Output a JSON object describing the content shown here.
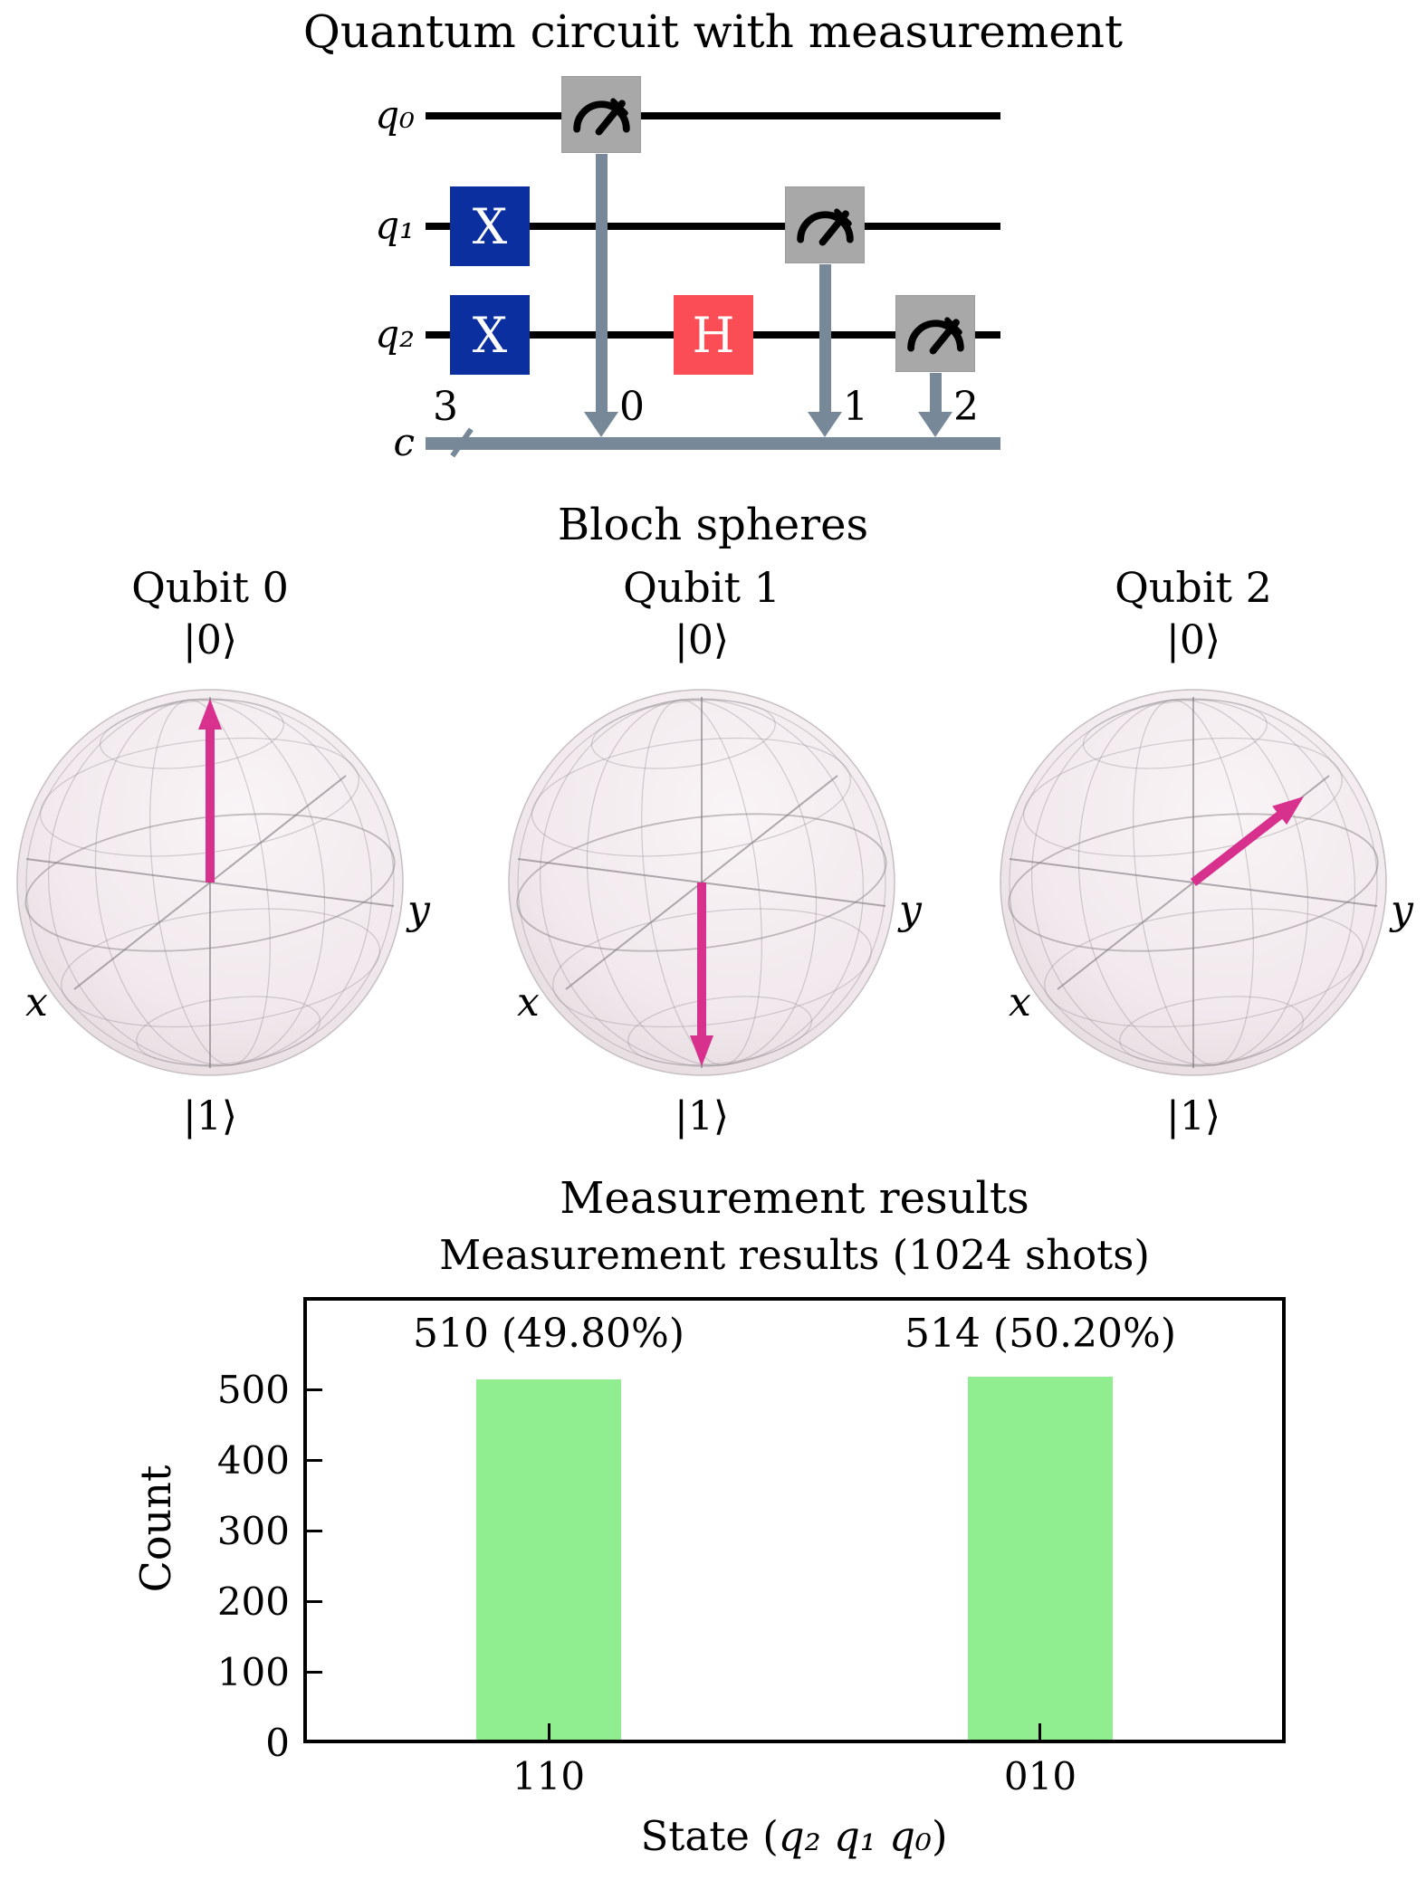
{
  "circuit": {
    "title": "Quantum circuit with measurement",
    "qubit_labels": [
      "q₀",
      "q₁",
      "q₂"
    ],
    "clbit_label": "c",
    "clbit_count": "3",
    "x_gate_label": "X",
    "h_gate_label": "H",
    "measure_targets": [
      "0",
      "1",
      "2"
    ],
    "colors": {
      "x_gate": "#0c2fa0",
      "h_gate": "#fa4d56",
      "measure_box": "#a8a8a8",
      "classical_wire": "#778899"
    }
  },
  "bloch": {
    "title": "Bloch spheres",
    "arrow_color": "#d7308d",
    "qubits": [
      {
        "label": "Qubit 0",
        "top_ket": "|0⟩",
        "bottom_ket": "|1⟩",
        "x_axis_label": "x",
        "y_axis_label": "y",
        "vector": [
          0,
          0,
          1
        ]
      },
      {
        "label": "Qubit 1",
        "top_ket": "|0⟩",
        "bottom_ket": "|1⟩",
        "x_axis_label": "x",
        "y_axis_label": "y",
        "vector": [
          0,
          0,
          -1
        ]
      },
      {
        "label": "Qubit 2",
        "top_ket": "|0⟩",
        "bottom_ket": "|1⟩",
        "x_axis_label": "x",
        "y_axis_label": "y",
        "vector": [
          -1,
          0,
          0
        ]
      }
    ]
  },
  "results_suptitle": "Measurement results",
  "chart_data": {
    "type": "bar",
    "title": "Measurement results (1024 shots)",
    "categories": [
      "110",
      "010"
    ],
    "values": [
      510,
      514
    ],
    "bar_labels": [
      "510 (49.80%)",
      "514 (50.20%)"
    ],
    "total_shots": 1024,
    "ylabel": "Count",
    "xlabel": "State (q₂ q₁ q₀)",
    "xlabel_prefix": "State (",
    "xlabel_math": "q₂ q₁ q₀",
    "xlabel_suffix": ")",
    "yticks": [
      0,
      100,
      200,
      300,
      400,
      500
    ],
    "ylim": [
      0,
      632
    ],
    "bar_color": "#90ee90",
    "grid": false,
    "legend": false
  }
}
